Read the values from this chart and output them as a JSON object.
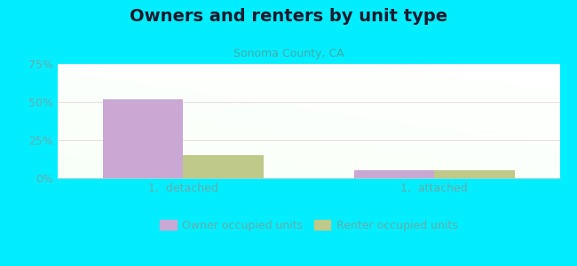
{
  "title": "Owners and renters by unit type",
  "subtitle": "Sonoma County, CA",
  "categories": [
    "1,  detached",
    "1,  attached"
  ],
  "owner_values": [
    52,
    5
  ],
  "renter_values": [
    15,
    5
  ],
  "owner_color": "#c9a8d4",
  "renter_color": "#bec98a",
  "bar_width": 0.32,
  "ylim": [
    0,
    75
  ],
  "yticks": [
    0,
    25,
    50,
    75
  ],
  "yticklabels": [
    "0%",
    "25%",
    "50%",
    "75%"
  ],
  "background_outer": "#00eeff",
  "title_fontsize": 14,
  "subtitle_fontsize": 9,
  "legend_fontsize": 9,
  "tick_color": "#66aaaa",
  "subtitle_color": "#44aaaa",
  "title_color": "#1a1a2e"
}
